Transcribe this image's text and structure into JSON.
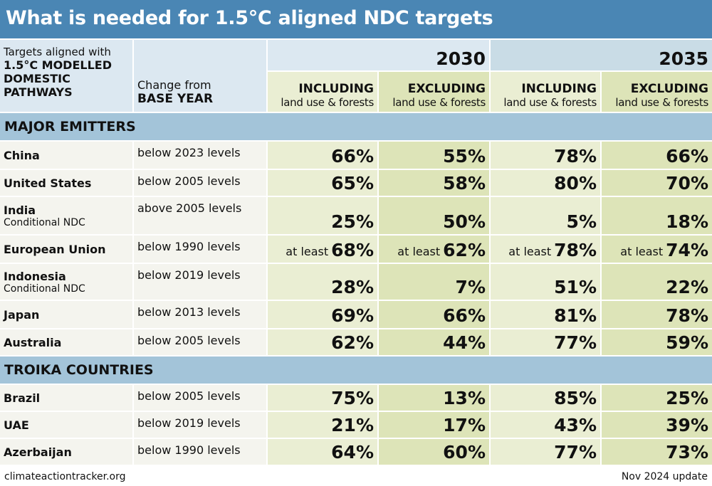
{
  "title": "What is needed for 1.5°C aligned NDC targets",
  "header": {
    "col1_line1": "Targets aligned with",
    "col1_line2": "1.5°C MODELLED DOMESTIC PATHWAYS",
    "col2_line1": "Change from",
    "col2_line2": "BASE YEAR",
    "year_2030": "2030",
    "year_2035": "2035",
    "including": "INCLUDING",
    "excluding": "EXCLUDING",
    "land_use": "land use & forests"
  },
  "colors": {
    "title_bar": "#4a86b4",
    "section_band": "#a3c4d9",
    "including_bg": "#eaeed3",
    "excluding_bg": "#dde4b8"
  },
  "chart_data": {
    "type": "table",
    "title": "What is needed for 1.5°C aligned NDC targets",
    "columns": [
      "2030 INCLUDING land use & forests",
      "2030 EXCLUDING land use & forests",
      "2035 INCLUDING land use & forests",
      "2035 EXCLUDING land use & forests"
    ],
    "sections": [
      {
        "name": "MAJOR EMITTERS",
        "rows": [
          {
            "country": "China",
            "note": "",
            "base": "below 2023 levels",
            "prefix": [
              "",
              "",
              "",
              ""
            ],
            "values": [
              "66%",
              "55%",
              "78%",
              "66%"
            ]
          },
          {
            "country": "United States",
            "note": "",
            "base": "below 2005 levels",
            "prefix": [
              "",
              "",
              "",
              ""
            ],
            "values": [
              "65%",
              "58%",
              "80%",
              "70%"
            ]
          },
          {
            "country": "India",
            "note": "Conditional NDC",
            "base": "above 2005 levels",
            "prefix": [
              "",
              "",
              "",
              ""
            ],
            "values": [
              "25%",
              "50%",
              "5%",
              "18%"
            ]
          },
          {
            "country": "European Union",
            "note": "",
            "base": "below 1990 levels",
            "prefix": [
              "at least",
              "at least",
              "at least",
              "at least"
            ],
            "values": [
              "68%",
              "62%",
              "78%",
              "74%"
            ]
          },
          {
            "country": "Indonesia",
            "note": "Conditional NDC",
            "base": "below 2019 levels",
            "prefix": [
              "",
              "",
              "",
              ""
            ],
            "values": [
              "28%",
              "7%",
              "51%",
              "22%"
            ]
          },
          {
            "country": "Japan",
            "note": "",
            "base": "below 2013 levels",
            "prefix": [
              "",
              "",
              "",
              ""
            ],
            "values": [
              "69%",
              "66%",
              "81%",
              "78%"
            ]
          },
          {
            "country": "Australia",
            "note": "",
            "base": "below 2005 levels",
            "prefix": [
              "",
              "",
              "",
              ""
            ],
            "values": [
              "62%",
              "44%",
              "77%",
              "59%"
            ]
          }
        ]
      },
      {
        "name": "TROIKA COUNTRIES",
        "rows": [
          {
            "country": "Brazil",
            "note": "",
            "base": "below 2005 levels",
            "prefix": [
              "",
              "",
              "",
              ""
            ],
            "values": [
              "75%",
              "13%",
              "85%",
              "25%"
            ]
          },
          {
            "country": "UAE",
            "note": "",
            "base": "below 2019 levels",
            "prefix": [
              "",
              "",
              "",
              ""
            ],
            "values": [
              "21%",
              "17%",
              "43%",
              "39%"
            ]
          },
          {
            "country": "Azerbaijan",
            "note": "",
            "base": "below 1990 levels",
            "prefix": [
              "",
              "",
              "",
              ""
            ],
            "values": [
              "64%",
              "60%",
              "77%",
              "73%"
            ]
          }
        ]
      }
    ]
  },
  "footer": {
    "source": "climateactiontracker.org",
    "update": "Nov 2024 update"
  }
}
